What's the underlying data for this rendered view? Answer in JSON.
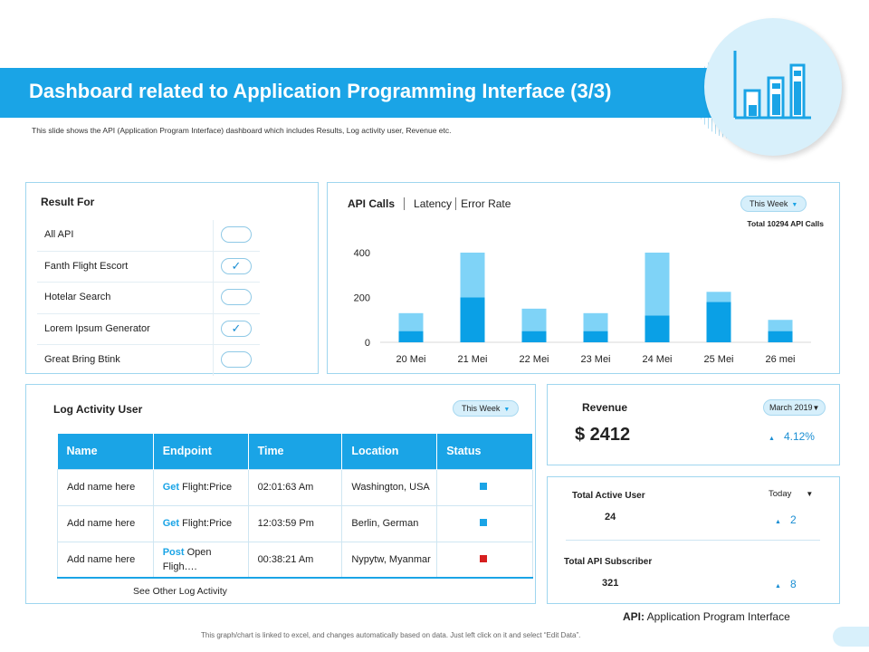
{
  "title": "Dashboard related to Application Programming Interface (3/3)",
  "subtitle": "This slide shows the API (Application Program Interface) dashboard which includes Results, Log activity user, Revenue etc.",
  "header_icon": "bar-chart-icon",
  "result_for": {
    "title": "Result For",
    "items": [
      {
        "label": "All API",
        "checked": false
      },
      {
        "label": "Fanth Flight Escort",
        "checked": true
      },
      {
        "label": "Hotelar Search",
        "checked": false
      },
      {
        "label": "Lorem  Ipsum Generator",
        "checked": true
      },
      {
        "label": "Great Bring Btink",
        "checked": false
      }
    ]
  },
  "api_panel": {
    "tabs": [
      "API Calls",
      "Latency",
      "Error Rate"
    ],
    "period": "This Week",
    "total": "Total 10294 API Calls"
  },
  "chart_data": {
    "type": "bar",
    "stacked": true,
    "categories": [
      "20 Mei",
      "21 Mei",
      "22 Mei",
      "23 Mei",
      "24 Mei",
      "25 Mei",
      "26 mei"
    ],
    "series": [
      {
        "values": [
          50,
          200,
          50,
          50,
          120,
          180,
          50
        ],
        "color": "#0aa0e6"
      },
      {
        "values": [
          80,
          200,
          100,
          80,
          280,
          45,
          50
        ],
        "color": "#7fd3f7"
      }
    ],
    "yticks": [
      0,
      200,
      400
    ],
    "ylim": [
      0,
      420
    ],
    "grid": false
  },
  "log_activity": {
    "title": "Log Activity User",
    "period": "This Week",
    "columns": [
      "Name",
      "Endpoint",
      "Time",
      "Location",
      "Status"
    ],
    "rows": [
      {
        "name": "Add name here",
        "method": "Get",
        "endpoint": " Flight:Price",
        "time": "02:01:63 Am",
        "location": "Washington, USA",
        "status_color": "#1aa4e6"
      },
      {
        "name": "Add name here",
        "method": "Get",
        "endpoint": " Flight:Price",
        "time": "12:03:59 Pm",
        "location": "Berlin, German",
        "status_color": "#1aa4e6"
      },
      {
        "name": "Add name here",
        "method": "Post",
        "endpoint": " Open Fligh….",
        "time": "00:38:21 Am",
        "location": "Nypytw, Myanmar",
        "status_color": "#d61f1f"
      }
    ],
    "see_other": "See Other Log Activity"
  },
  "revenue": {
    "title": "Revenue",
    "period": "March 2019",
    "amount": "$ 2412",
    "change": "4.12%"
  },
  "users": {
    "period": "Today",
    "active_label": "Total Active User",
    "active_value": "24",
    "active_change": "2",
    "subscriber_label": "Total API Subscriber",
    "subscriber_value": "321",
    "subscriber_change": "8"
  },
  "api_definition": {
    "term": "API:",
    "meaning": " Application Program Interface"
  },
  "footer": "This graph/chart is linked to excel, and changes automatically based on data. Just left click on it and select “Edit Data”.",
  "colors": {
    "accent": "#1aa4e6",
    "light": "#7fd3f7",
    "status_red": "#d61f1f"
  }
}
